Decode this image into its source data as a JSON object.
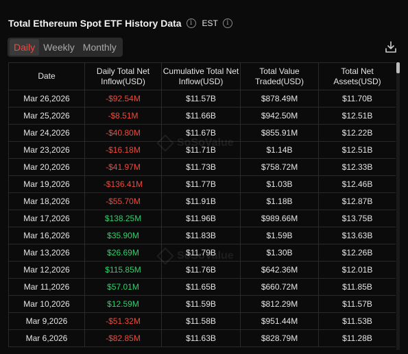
{
  "header": {
    "title": "Total Ethereum Spot ETF History Data",
    "timezone": "EST"
  },
  "tabs": [
    {
      "label": "Daily",
      "active": true
    },
    {
      "label": "Weekly",
      "active": false
    },
    {
      "label": "Monthly",
      "active": false
    }
  ],
  "table": {
    "columns": [
      "Date",
      "Daily Total Net Inflow(USD)",
      "Cumulative Total Net Inflow(USD)",
      "Total Value Traded(USD)",
      "Total Net Assets(USD)"
    ],
    "rows": [
      [
        "Mar 26,2026",
        "-$92.54M",
        "$11.57B",
        "$878.49M",
        "$11.70B"
      ],
      [
        "Mar 25,2026",
        "-$8.51M",
        "$11.66B",
        "$942.50M",
        "$12.51B"
      ],
      [
        "Mar 24,2026",
        "-$40.80M",
        "$11.67B",
        "$855.91M",
        "$12.22B"
      ],
      [
        "Mar 23,2026",
        "-$16.18M",
        "$11.71B",
        "$1.14B",
        "$12.51B"
      ],
      [
        "Mar 20,2026",
        "-$41.97M",
        "$11.73B",
        "$758.72M",
        "$12.33B"
      ],
      [
        "Mar 19,2026",
        "-$136.41M",
        "$11.77B",
        "$1.03B",
        "$12.46B"
      ],
      [
        "Mar 18,2026",
        "-$55.70M",
        "$11.91B",
        "$1.18B",
        "$12.87B"
      ],
      [
        "Mar 17,2026",
        "$138.25M",
        "$11.96B",
        "$989.66M",
        "$13.75B"
      ],
      [
        "Mar 16,2026",
        "$35.90M",
        "$11.83B",
        "$1.59B",
        "$13.63B"
      ],
      [
        "Mar 13,2026",
        "$26.69M",
        "$11.79B",
        "$1.30B",
        "$12.26B"
      ],
      [
        "Mar 12,2026",
        "$115.85M",
        "$11.76B",
        "$642.36M",
        "$12.01B"
      ],
      [
        "Mar 11,2026",
        "$57.01M",
        "$11.65B",
        "$660.72M",
        "$11.85B"
      ],
      [
        "Mar 10,2026",
        "$12.59M",
        "$11.59B",
        "$812.29M",
        "$11.57B"
      ],
      [
        "Mar 9,2026",
        "-$51.32M",
        "$11.58B",
        "$951.44M",
        "$11.53B"
      ],
      [
        "Mar 6,2026",
        "-$82.85M",
        "$11.63B",
        "$828.79M",
        "$11.28B"
      ]
    ]
  },
  "watermark": "SoSoValue",
  "icons": {
    "title_info": "info-icon",
    "timezone_info": "info-icon",
    "download": "download-icon"
  },
  "colors": {
    "negative": "#f04a3c",
    "positive": "#2fd16b",
    "active_tab": "#f04a3c"
  }
}
